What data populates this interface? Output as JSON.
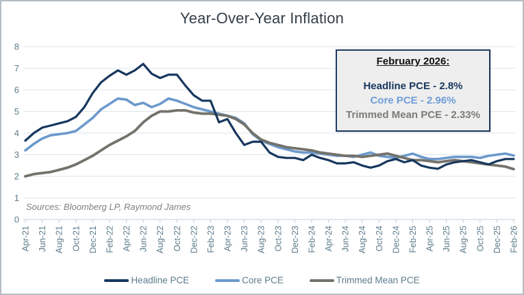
{
  "page": {
    "source_note": "Sources: Bloomberg LP, Raymond James"
  },
  "colors": {
    "headline": "#17375E",
    "core": "#6C99CC",
    "core_text": "#6F9DD9",
    "trimmed": "#74726B",
    "trimmed_text": "#7D7C75",
    "axis_text": "#5D7B8C",
    "gridline": "#DCE6EC",
    "axis_line": "#C2CED8",
    "title_text": "#333E47",
    "source_text": "#7F7F7F",
    "callout_bg": "#EEEEEE",
    "callout_border": "#1F3A5F",
    "page_border": "#B3BCC2"
  },
  "callout": {
    "title": "February 2026:",
    "lines": [
      {
        "series": "headline",
        "label": "Headline PCE - 2.8%"
      },
      {
        "series": "core",
        "label": "Core PCE - 2.96%"
      },
      {
        "series": "trimmed",
        "label": "Trimmed Mean PCE - 2.33%"
      }
    ]
  },
  "chart_data": {
    "type": "line",
    "title": "Year-Over-Year Inflation",
    "xlabel": "",
    "ylabel": "",
    "ylim": [
      0,
      8
    ],
    "y_ticks": [
      0,
      1,
      2,
      3,
      4,
      5,
      6,
      7,
      8
    ],
    "grid": true,
    "legend_position": "bottom",
    "x": [
      "Apr-21",
      "May-21",
      "Jun-21",
      "Jul-21",
      "Aug-21",
      "Sep-21",
      "Oct-21",
      "Nov-21",
      "Dec-21",
      "Jan-22",
      "Feb-22",
      "Mar-22",
      "Apr-22",
      "May-22",
      "Jun-22",
      "Jul-22",
      "Aug-22",
      "Sep-22",
      "Oct-22",
      "Nov-22",
      "Dec-22",
      "Jan-23",
      "Feb-23",
      "Mar-23",
      "Apr-23",
      "May-23",
      "Jun-23",
      "Jul-23",
      "Aug-23",
      "Sep-23",
      "Oct-23",
      "Nov-23",
      "Dec-23",
      "Jan-24",
      "Feb-24",
      "Mar-24",
      "Apr-24",
      "May-24",
      "Jun-24",
      "Jul-24",
      "Aug-24",
      "Sep-24",
      "Oct-24",
      "Nov-24",
      "Dec-24",
      "Jan-25",
      "Feb-25",
      "Mar-25",
      "Apr-25",
      "May-25",
      "Jun-25",
      "Jul-25",
      "Aug-25",
      "Sep-25",
      "Oct-25",
      "Nov-25",
      "Dec-25",
      "Jan-26",
      "Feb-26"
    ],
    "x_tick_labels": [
      "Apr-21",
      "Jun-21",
      "Aug-21",
      "Oct-21",
      "Dec-21",
      "Feb-22",
      "Apr-22",
      "Jun-22",
      "Aug-22",
      "Oct-22",
      "Dec-22",
      "Feb-23",
      "Apr-23",
      "Jun-23",
      "Aug-23",
      "Oct-23",
      "Dec-23",
      "Feb-24",
      "Apr-24",
      "Jun-24",
      "Aug-24",
      "Oct-24",
      "Dec-24",
      "Feb-25",
      "Apr-25",
      "Jun-25",
      "Aug-25",
      "Oct-25",
      "Dec-25",
      "Feb-26"
    ],
    "series": [
      {
        "name": "Headline PCE",
        "color": "#17375E",
        "values": [
          3.65,
          4.0,
          4.25,
          4.35,
          4.45,
          4.55,
          4.75,
          5.2,
          5.85,
          6.35,
          6.65,
          6.9,
          6.7,
          6.9,
          7.2,
          6.75,
          6.55,
          6.7,
          6.7,
          6.2,
          5.75,
          5.5,
          5.5,
          4.5,
          4.65,
          4.0,
          3.45,
          3.6,
          3.6,
          3.1,
          2.9,
          2.85,
          2.85,
          2.75,
          3.0,
          2.85,
          2.75,
          2.6,
          2.6,
          2.65,
          2.5,
          2.4,
          2.5,
          2.7,
          2.8,
          2.65,
          2.75,
          2.5,
          2.4,
          2.35,
          2.55,
          2.65,
          2.7,
          2.75,
          2.65,
          2.55,
          2.7,
          2.8,
          2.8
        ]
      },
      {
        "name": "Core PCE",
        "color": "#6C99CC",
        "values": [
          3.2,
          3.5,
          3.75,
          3.9,
          3.95,
          4.0,
          4.1,
          4.4,
          4.7,
          5.1,
          5.35,
          5.6,
          5.55,
          5.3,
          5.4,
          5.2,
          5.35,
          5.6,
          5.5,
          5.35,
          5.2,
          5.1,
          5.0,
          4.9,
          4.8,
          4.7,
          4.45,
          3.95,
          3.65,
          3.5,
          3.35,
          3.25,
          3.15,
          3.1,
          3.1,
          3.05,
          3.0,
          2.95,
          2.95,
          2.9,
          3.0,
          3.1,
          2.95,
          2.9,
          2.85,
          2.95,
          3.05,
          2.9,
          2.8,
          2.8,
          2.85,
          2.9,
          2.9,
          2.9,
          2.85,
          2.95,
          3.0,
          3.05,
          2.96
        ]
      },
      {
        "name": "Trimmed Mean PCE",
        "color": "#74726B",
        "values": [
          2.0,
          2.1,
          2.15,
          2.2,
          2.3,
          2.4,
          2.55,
          2.75,
          2.95,
          3.2,
          3.45,
          3.65,
          3.85,
          4.1,
          4.5,
          4.8,
          5.0,
          5.0,
          5.05,
          5.05,
          4.95,
          4.9,
          4.9,
          4.85,
          4.8,
          4.65,
          4.4,
          4.0,
          3.7,
          3.55,
          3.45,
          3.35,
          3.3,
          3.25,
          3.2,
          3.1,
          3.05,
          3.0,
          2.95,
          2.95,
          2.9,
          2.95,
          3.0,
          3.05,
          2.95,
          2.85,
          2.75,
          2.75,
          2.7,
          2.65,
          2.7,
          2.75,
          2.7,
          2.65,
          2.6,
          2.55,
          2.5,
          2.45,
          2.33
        ]
      }
    ]
  }
}
